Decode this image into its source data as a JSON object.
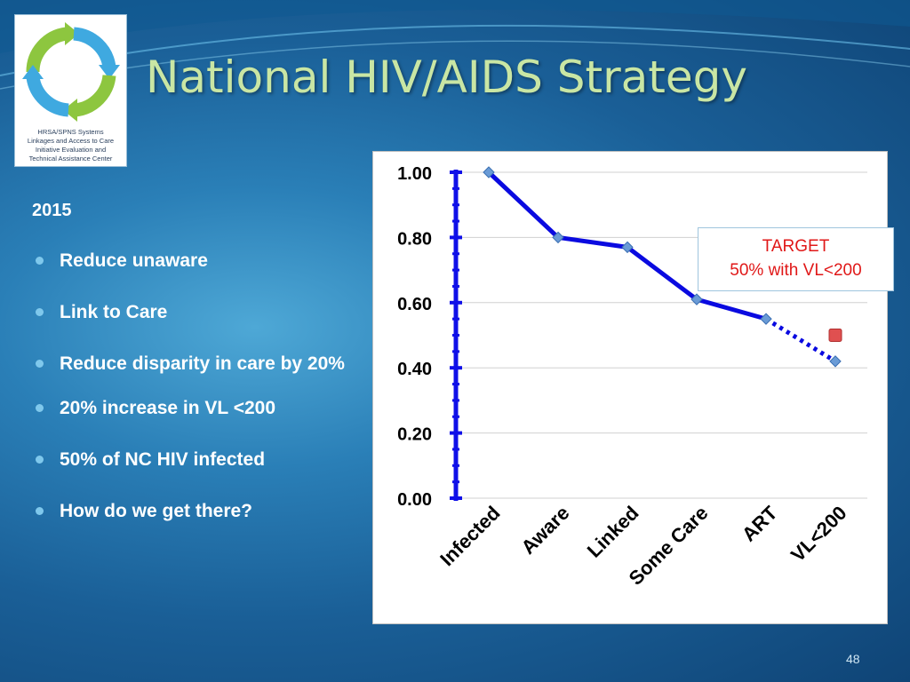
{
  "slide": {
    "title": "National HIV/AIDS Strategy",
    "number": "48"
  },
  "logo": {
    "lines": [
      "HRSA/SPNS Systems",
      "Linkages and Access to Care",
      "Initiative Evaluation and",
      "Technical Assistance Center"
    ],
    "colors": {
      "green": "#8dc63f",
      "blue": "#3fa9e0"
    }
  },
  "content": {
    "year": "2015",
    "bullets": [
      "Reduce unaware",
      "Link to Care",
      "Reduce disparity in care by 20%",
      "20% increase in VL <200",
      "50% of NC HIV infected",
      "How do we get there?"
    ]
  },
  "callout": {
    "line1": "TARGET",
    "line2": "50% with VL<200",
    "color": "#e01818"
  },
  "chart_data": {
    "type": "line",
    "categories": [
      "Infected",
      "Aware",
      "Linked",
      "Some Care",
      "ART",
      "VL<200"
    ],
    "series": [
      {
        "values": [
          1.0,
          0.8,
          0.77,
          0.61,
          0.55,
          0.42
        ],
        "color": "#0a0ae0",
        "dotted_last_segment": true
      }
    ],
    "target_point": {
      "category": "VL<200",
      "value": 0.5,
      "color": "#e05050"
    },
    "ylim": [
      0,
      1
    ],
    "yticks": [
      "0.00",
      "0.20",
      "0.40",
      "0.60",
      "0.80",
      "1.00"
    ],
    "grid": true,
    "title": "",
    "xlabel": "",
    "ylabel": ""
  }
}
